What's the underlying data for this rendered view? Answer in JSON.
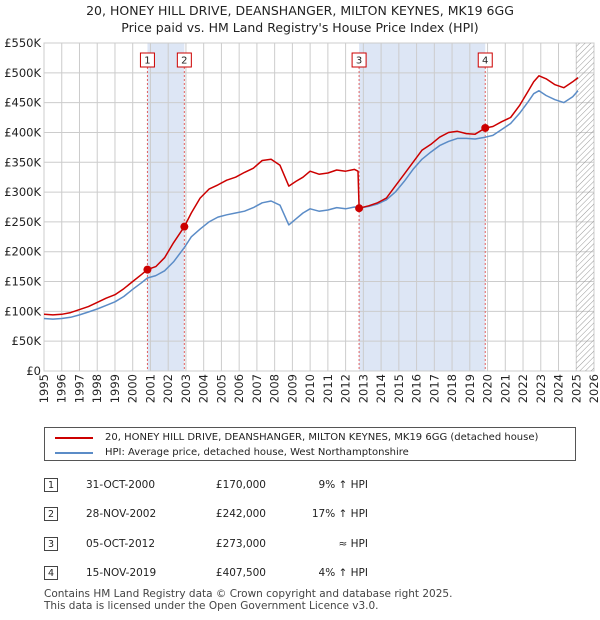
{
  "header": {
    "title_line1": "20, HONEY HILL DRIVE, DEANSHANGER, MILTON KEYNES, MK19 6GG",
    "title_line2": "Price paid vs. HM Land Registry's House Price Index (HPI)"
  },
  "colors": {
    "property_line": "#cc0000",
    "hpi_line": "#5b8cc7",
    "shade": "#dde6f5",
    "marker_line": "#e06060",
    "grid": "#cccccc",
    "hatch": "#999999"
  },
  "chart_data": {
    "type": "line",
    "title": "20, HONEY HILL DRIVE, DEANSHANGER, MILTON KEYNES, MK19 6GG — Price paid vs. HM Land Registry's House Price Index (HPI)",
    "xlabel": "",
    "ylabel": "",
    "xlim": [
      1995,
      2026
    ],
    "ylim": [
      0,
      550000
    ],
    "grid": true,
    "yticks": [
      {
        "value": 0,
        "label": "£0"
      },
      {
        "value": 50000,
        "label": "£50K"
      },
      {
        "value": 100000,
        "label": "£100K"
      },
      {
        "value": 150000,
        "label": "£150K"
      },
      {
        "value": 200000,
        "label": "£200K"
      },
      {
        "value": 250000,
        "label": "£250K"
      },
      {
        "value": 300000,
        "label": "£300K"
      },
      {
        "value": 350000,
        "label": "£350K"
      },
      {
        "value": 400000,
        "label": "£400K"
      },
      {
        "value": 450000,
        "label": "£450K"
      },
      {
        "value": 500000,
        "label": "£500K"
      },
      {
        "value": 550000,
        "label": "£550K"
      }
    ],
    "xticks": [
      "1995",
      "1996",
      "1997",
      "1998",
      "1999",
      "2000",
      "2001",
      "2002",
      "2003",
      "2004",
      "2005",
      "2006",
      "2007",
      "2008",
      "2009",
      "2010",
      "2011",
      "2012",
      "2013",
      "2014",
      "2015",
      "2016",
      "2017",
      "2018",
      "2019",
      "2020",
      "2021",
      "2022",
      "2023",
      "2024",
      "2025",
      "2026"
    ],
    "shaded_ranges": [
      [
        2000.83,
        2002.91
      ],
      [
        2012.76,
        2019.87
      ]
    ],
    "hatched_from": 2025.0,
    "series": [
      {
        "name": "20, HONEY HILL DRIVE, DEANSHANGER, MILTON KEYNES, MK19 6GG (detached house)",
        "x": [
          1995.0,
          1995.5,
          1996.0,
          1996.5,
          1997.0,
          1997.5,
          1998.0,
          1998.5,
          1999.0,
          1999.5,
          2000.0,
          2000.5,
          2000.83,
          2001.3,
          2001.8,
          2002.3,
          2002.91,
          2003.3,
          2003.8,
          2004.3,
          2004.8,
          2005.3,
          2005.8,
          2006.3,
          2006.8,
          2007.3,
          2007.8,
          2008.3,
          2008.8,
          2009.2,
          2009.6,
          2010.0,
          2010.5,
          2011.0,
          2011.5,
          2012.0,
          2012.5,
          2012.7,
          2012.76,
          2013.3,
          2013.8,
          2014.3,
          2014.8,
          2015.3,
          2015.8,
          2016.3,
          2016.8,
          2017.3,
          2017.8,
          2018.3,
          2018.8,
          2019.3,
          2019.87,
          2020.3,
          2020.8,
          2021.3,
          2021.8,
          2022.3,
          2022.6,
          2022.9,
          2023.3,
          2023.8,
          2024.3,
          2024.8,
          2025.1
        ],
        "y": [
          95000,
          94000,
          95000,
          98000,
          103000,
          108000,
          115000,
          122000,
          128000,
          138000,
          150000,
          162000,
          170000,
          175000,
          190000,
          215000,
          242000,
          265000,
          290000,
          305000,
          312000,
          320000,
          325000,
          333000,
          340000,
          353000,
          355000,
          345000,
          310000,
          318000,
          325000,
          335000,
          330000,
          332000,
          337000,
          335000,
          338000,
          335000,
          273000,
          277000,
          282000,
          290000,
          310000,
          330000,
          350000,
          370000,
          380000,
          392000,
          400000,
          402000,
          398000,
          397000,
          407500,
          410000,
          418000,
          425000,
          445000,
          470000,
          485000,
          495000,
          490000,
          480000,
          475000,
          485000,
          492000
        ]
      },
      {
        "name": "HPI: Average price, detached house, West Northamptonshire",
        "x": [
          1995.0,
          1995.5,
          1996.0,
          1996.5,
          1997.0,
          1997.5,
          1998.0,
          1998.5,
          1999.0,
          1999.5,
          2000.0,
          2000.5,
          2000.83,
          2001.3,
          2001.8,
          2002.3,
          2002.91,
          2003.3,
          2003.8,
          2004.3,
          2004.8,
          2005.3,
          2005.8,
          2006.3,
          2006.8,
          2007.3,
          2007.8,
          2008.3,
          2008.8,
          2009.2,
          2009.6,
          2010.0,
          2010.5,
          2011.0,
          2011.5,
          2012.0,
          2012.5,
          2012.76,
          2013.3,
          2013.8,
          2014.3,
          2014.8,
          2015.3,
          2015.8,
          2016.3,
          2016.8,
          2017.3,
          2017.8,
          2018.3,
          2018.8,
          2019.3,
          2019.87,
          2020.3,
          2020.8,
          2021.3,
          2021.8,
          2022.3,
          2022.6,
          2022.9,
          2023.3,
          2023.8,
          2024.3,
          2024.8,
          2025.1
        ],
        "y": [
          88000,
          87000,
          88000,
          90000,
          94000,
          99000,
          104000,
          110000,
          116000,
          125000,
          137000,
          148000,
          156000,
          160000,
          168000,
          183000,
          207000,
          225000,
          238000,
          250000,
          258000,
          262000,
          265000,
          268000,
          274000,
          282000,
          285000,
          278000,
          245000,
          255000,
          265000,
          272000,
          268000,
          270000,
          274000,
          272000,
          275000,
          273000,
          276000,
          280000,
          287000,
          300000,
          318000,
          338000,
          355000,
          367000,
          378000,
          385000,
          390000,
          390000,
          389000,
          392000,
          395000,
          405000,
          415000,
          432000,
          452000,
          465000,
          470000,
          462000,
          455000,
          450000,
          460000,
          470000
        ]
      }
    ],
    "markers": [
      {
        "label": "1",
        "x": 2000.83,
        "y": 170000
      },
      {
        "label": "2",
        "x": 2002.91,
        "y": 242000
      },
      {
        "label": "3",
        "x": 2012.76,
        "y": 273000
      },
      {
        "label": "4",
        "x": 2019.87,
        "y": 407500
      }
    ]
  },
  "legend": {
    "property_label": "20, HONEY HILL DRIVE, DEANSHANGER, MILTON KEYNES, MK19 6GG (detached house)",
    "hpi_label": "HPI: Average price, detached house, West Northamptonshire"
  },
  "sales": [
    {
      "num": "1",
      "date": "31-OCT-2000",
      "price": "£170,000",
      "hpi": "9% ↑ HPI"
    },
    {
      "num": "2",
      "date": "28-NOV-2002",
      "price": "£242,000",
      "hpi": "17% ↑ HPI"
    },
    {
      "num": "3",
      "date": "05-OCT-2012",
      "price": "£273,000",
      "hpi": "≈ HPI"
    },
    {
      "num": "4",
      "date": "15-NOV-2019",
      "price": "£407,500",
      "hpi": "4% ↑ HPI"
    }
  ],
  "footer": {
    "line1": "Contains HM Land Registry data © Crown copyright and database right 2025.",
    "line2": "This data is licensed under the Open Government Licence v3.0."
  }
}
